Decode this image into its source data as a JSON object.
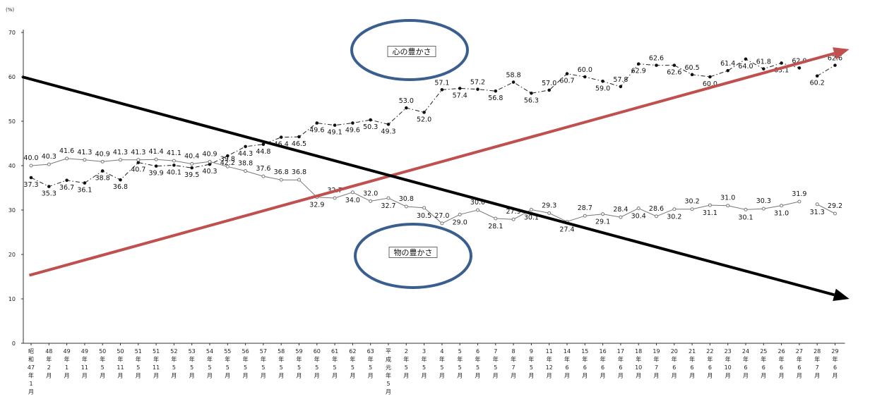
{
  "chart_data": {
    "type": "line",
    "unit_label": "(%)",
    "ylim": [
      0,
      70
    ],
    "yticks": [
      "0",
      "10",
      "20",
      "30",
      "40",
      "50",
      "60",
      "70"
    ],
    "categories": [
      [
        "昭",
        "和",
        "47",
        "年",
        "1",
        "月"
      ],
      [
        "48",
        "年",
        "2",
        "月"
      ],
      [
        "49",
        "年",
        "1",
        "月"
      ],
      [
        "49",
        "年",
        "11",
        "月"
      ],
      [
        "50",
        "年",
        "5",
        "月"
      ],
      [
        "50",
        "年",
        "11",
        "月"
      ],
      [
        "51",
        "年",
        "5",
        "月"
      ],
      [
        "51",
        "年",
        "11",
        "月"
      ],
      [
        "52",
        "年",
        "5",
        "月"
      ],
      [
        "53",
        "年",
        "5",
        "月"
      ],
      [
        "54",
        "年",
        "5",
        "月"
      ],
      [
        "55",
        "年",
        "5",
        "月"
      ],
      [
        "56",
        "年",
        "5",
        "月"
      ],
      [
        "57",
        "年",
        "5",
        "月"
      ],
      [
        "58",
        "年",
        "5",
        "月"
      ],
      [
        "59",
        "年",
        "5",
        "月"
      ],
      [
        "60",
        "年",
        "5",
        "月"
      ],
      [
        "61",
        "年",
        "5",
        "月"
      ],
      [
        "62",
        "年",
        "5",
        "月"
      ],
      [
        "63",
        "年",
        "5",
        "月"
      ],
      [
        "平",
        "成",
        "元",
        "年",
        "5",
        "月"
      ],
      [
        "2",
        "年",
        "5",
        "月"
      ],
      [
        "3",
        "年",
        "5",
        "月"
      ],
      [
        "4",
        "年",
        "5",
        "月"
      ],
      [
        "5",
        "年",
        "5",
        "月"
      ],
      [
        "6",
        "年",
        "5",
        "月"
      ],
      [
        "7",
        "年",
        "5",
        "月"
      ],
      [
        "8",
        "年",
        "7",
        "月"
      ],
      [
        "9",
        "年",
        "5",
        "月"
      ],
      [
        "11",
        "年",
        "12",
        "月"
      ],
      [
        "14",
        "年",
        "6",
        "月"
      ],
      [
        "15",
        "年",
        "6",
        "月"
      ],
      [
        "16",
        "年",
        "6",
        "月"
      ],
      [
        "17",
        "年",
        "6",
        "月"
      ],
      [
        "18",
        "年",
        "10",
        "月"
      ],
      [
        "19",
        "年",
        "7",
        "月"
      ],
      [
        "20",
        "年",
        "6",
        "月"
      ],
      [
        "21",
        "年",
        "6",
        "月"
      ],
      [
        "22",
        "年",
        "6",
        "月"
      ],
      [
        "23",
        "年",
        "10",
        "月"
      ],
      [
        "24",
        "年",
        "6",
        "月"
      ],
      [
        "25",
        "年",
        "6",
        "月"
      ],
      [
        "26",
        "年",
        "6",
        "月"
      ],
      [
        "27",
        "年",
        "6",
        "月"
      ],
      [
        "28",
        "年",
        "7",
        "月"
      ],
      [
        "29",
        "年",
        "6",
        "月"
      ]
    ],
    "series": [
      {
        "name": "心の豊かさ",
        "marker": "filled",
        "line_style": "dash-dot",
        "values": [
          37.3,
          35.3,
          36.7,
          36.1,
          38.8,
          36.8,
          40.7,
          39.9,
          40.1,
          39.5,
          40.3,
          42.2,
          44.3,
          44.8,
          46.4,
          46.5,
          49.6,
          49.1,
          49.6,
          50.3,
          49.3,
          53.0,
          52.0,
          57.1,
          57.4,
          57.2,
          56.8,
          58.8,
          56.3,
          57.0,
          60.7,
          60.0,
          59.0,
          57.8,
          62.9,
          62.6,
          62.6,
          60.5,
          60.0,
          61.4,
          64.0,
          61.8,
          63.1,
          62.0,
          60.2,
          62.6
        ],
        "labels": [
          "37.3",
          "35.3",
          "36.7",
          "36.1",
          "38.8",
          "36.8",
          "40.7",
          "39.9",
          "40.1",
          "39.5",
          "40.3",
          "42.2",
          "44.3",
          "44.8",
          "46.4",
          "46.5",
          "49.6",
          "49.1",
          "49.6",
          "50.3",
          "49.3",
          "53.0",
          "52.0",
          "57.1",
          "57.4",
          "57.2",
          "56.8",
          "58.8",
          "56.3",
          "57.0",
          "60.7",
          "60.0",
          "59.0",
          "57.8",
          "62.9",
          "62.6",
          "62.6",
          "60.5",
          "60.0",
          "61.4",
          "64.0",
          "61.8",
          "63.1",
          "62.0",
          "60.2",
          "62.6"
        ],
        "gaps_after": [
          43
        ]
      },
      {
        "name": "物の豊かさ",
        "marker": "hollow",
        "line_style": "solid",
        "values": [
          40.0,
          40.3,
          41.6,
          41.3,
          40.9,
          41.3,
          41.3,
          41.4,
          41.1,
          40.4,
          40.9,
          39.8,
          38.8,
          37.6,
          36.8,
          36.8,
          32.9,
          32.7,
          34.0,
          32.0,
          32.7,
          30.8,
          30.5,
          27.0,
          29.0,
          30.0,
          28.1,
          27.9,
          30.1,
          29.3,
          27.4,
          28.7,
          29.1,
          28.4,
          30.4,
          28.6,
          30.2,
          30.2,
          31.1,
          31.0,
          30.1,
          30.3,
          31.0,
          31.9,
          31.3,
          29.2
        ],
        "labels": [
          "40.0",
          "40.3",
          "41.6",
          "41.3",
          "40.9",
          "41.3",
          "41.3",
          "41.4",
          "41.1",
          "40.4",
          "40.9",
          "39.8",
          "38.8",
          "37.6",
          "36.8",
          "36.8",
          "32.9",
          "32.7",
          "34.0",
          "32.0",
          "32.7",
          "30.8",
          "30.5",
          "27.0",
          "29.0",
          "30.0",
          "28.1",
          "27.9",
          "30.1",
          "29.3",
          "27.4",
          "28.7",
          "29.1",
          "28.4",
          "30.4",
          "28.6",
          "30.2",
          "30.2",
          "31.1",
          "31.0",
          "30.1",
          "30.3",
          "31.0",
          "31.9",
          "31.3",
          "29.2"
        ],
        "gaps_after": [
          43
        ]
      }
    ],
    "annotation_boxes": [
      {
        "text": "心の豊かさ",
        "series": 0
      },
      {
        "text": "物の豊かさ",
        "series": 1
      }
    ],
    "trend_arrows": [
      {
        "color": "#c0504d",
        "from": {
          "x_index": -0.1,
          "y": 15.3
        },
        "to": {
          "x_index": 45.8,
          "y": 66.2
        }
      },
      {
        "color": "#000000",
        "from": {
          "x_index": -0.5,
          "y": 60.0
        },
        "to": {
          "x_index": 45.8,
          "y": 10.0
        }
      }
    ],
    "ellipse_color": "#3a5f8f",
    "grid": false
  }
}
